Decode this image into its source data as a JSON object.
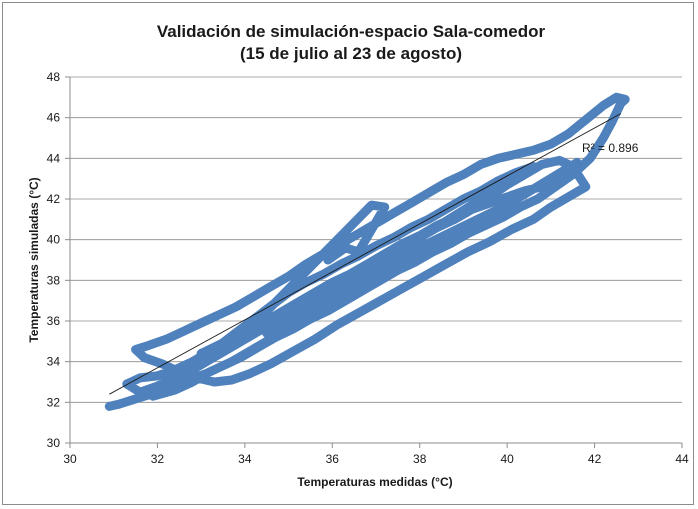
{
  "chart_data": {
    "type": "scatter",
    "title_line1": "Validación de simulación-espacio Sala-comedor",
    "title_line2": "(15 de julio al 23 de agosto)",
    "xlabel": "Temperaturas medidas (°C)",
    "ylabel": "Temperaturas simuladas (°C)",
    "xlim": [
      30,
      44
    ],
    "ylim": [
      30,
      48
    ],
    "xticks": [
      30,
      32,
      34,
      36,
      38,
      40,
      42,
      44
    ],
    "yticks": [
      30,
      32,
      34,
      36,
      38,
      40,
      42,
      44,
      46,
      48
    ],
    "xtick_labels": [
      "30",
      "32",
      "34",
      "36",
      "38",
      "40",
      "42",
      "44"
    ],
    "ytick_labels": [
      "30",
      "32",
      "34",
      "36",
      "38",
      "40",
      "42",
      "44",
      "46",
      "48"
    ],
    "grid": "horizontal",
    "legend": "none",
    "marker_color": "#4f81bd",
    "trendline_color": "#1a1a1a",
    "annotation": "R² = 0.896",
    "trendline": {
      "x": [
        30.9,
        42.6
      ],
      "y": [
        32.4,
        46.2
      ]
    },
    "series": [
      {
        "values": [
          [
            30.9,
            31.8
          ],
          [
            31.1,
            31.9
          ],
          [
            31.4,
            32.1
          ],
          [
            31.7,
            32.3
          ],
          [
            32.0,
            32.5
          ],
          [
            32.3,
            32.8
          ],
          [
            32.7,
            33.1
          ],
          [
            33.1,
            33.4
          ],
          [
            33.5,
            33.8
          ],
          [
            33.9,
            34.2
          ],
          [
            34.3,
            34.7
          ],
          [
            34.7,
            35.2
          ],
          [
            35.1,
            35.6
          ],
          [
            35.5,
            36.1
          ],
          [
            35.9,
            36.5
          ],
          [
            36.3,
            37.0
          ],
          [
            36.7,
            37.5
          ],
          [
            37.1,
            38.0
          ],
          [
            37.5,
            38.5
          ],
          [
            37.9,
            38.9
          ],
          [
            38.3,
            39.4
          ],
          [
            38.7,
            39.8
          ],
          [
            39.1,
            40.3
          ],
          [
            39.5,
            40.7
          ],
          [
            39.9,
            41.1
          ],
          [
            40.3,
            41.6
          ],
          [
            40.7,
            42.0
          ],
          [
            41.1,
            42.6
          ],
          [
            41.5,
            43.2
          ],
          [
            41.9,
            44.0
          ],
          [
            42.2,
            45.0
          ],
          [
            42.4,
            45.8
          ],
          [
            42.6,
            46.7
          ],
          [
            42.7,
            46.9
          ],
          [
            42.5,
            47.0
          ],
          [
            42.2,
            46.6
          ],
          [
            41.8,
            45.9
          ],
          [
            41.4,
            45.2
          ],
          [
            41.0,
            44.7
          ],
          [
            40.6,
            44.4
          ],
          [
            40.2,
            44.2
          ],
          [
            39.8,
            44.0
          ],
          [
            39.4,
            43.7
          ],
          [
            39.0,
            43.2
          ],
          [
            38.6,
            42.8
          ],
          [
            38.2,
            42.3
          ],
          [
            37.8,
            41.8
          ],
          [
            37.4,
            41.3
          ],
          [
            37.0,
            40.8
          ],
          [
            36.6,
            40.3
          ],
          [
            36.2,
            39.8
          ],
          [
            35.8,
            39.3
          ],
          [
            35.4,
            38.8
          ],
          [
            35.0,
            38.2
          ],
          [
            34.6,
            37.7
          ],
          [
            34.2,
            37.2
          ],
          [
            33.8,
            36.7
          ],
          [
            33.4,
            36.3
          ],
          [
            33.0,
            35.9
          ],
          [
            32.6,
            35.5
          ],
          [
            32.2,
            35.1
          ],
          [
            31.8,
            34.8
          ],
          [
            31.5,
            34.6
          ],
          [
            31.7,
            34.2
          ],
          [
            32.1,
            33.9
          ],
          [
            32.5,
            33.5
          ],
          [
            32.9,
            33.2
          ],
          [
            33.3,
            33.0
          ],
          [
            33.7,
            33.1
          ],
          [
            34.1,
            33.4
          ],
          [
            34.6,
            33.9
          ],
          [
            35.1,
            34.5
          ],
          [
            35.6,
            35.1
          ],
          [
            36.1,
            35.8
          ],
          [
            36.6,
            36.4
          ],
          [
            37.1,
            37.0
          ],
          [
            37.6,
            37.6
          ],
          [
            38.1,
            38.2
          ],
          [
            38.6,
            38.8
          ],
          [
            39.1,
            39.4
          ],
          [
            39.6,
            39.9
          ],
          [
            40.1,
            40.5
          ],
          [
            40.6,
            41.0
          ],
          [
            41.0,
            41.6
          ],
          [
            41.4,
            42.1
          ],
          [
            41.8,
            42.6
          ],
          [
            41.5,
            43.6
          ],
          [
            41.2,
            43.9
          ],
          [
            40.8,
            43.7
          ],
          [
            40.4,
            43.2
          ],
          [
            40.0,
            42.7
          ],
          [
            39.6,
            42.1
          ],
          [
            39.2,
            41.5
          ],
          [
            38.8,
            41.0
          ],
          [
            38.4,
            40.6
          ],
          [
            38.0,
            40.1
          ],
          [
            37.6,
            39.6
          ],
          [
            37.2,
            39.1
          ],
          [
            36.8,
            38.6
          ],
          [
            36.4,
            38.1
          ],
          [
            36.0,
            37.6
          ],
          [
            35.6,
            37.1
          ],
          [
            35.2,
            36.6
          ],
          [
            34.8,
            36.1
          ],
          [
            34.4,
            35.6
          ],
          [
            34.0,
            35.1
          ],
          [
            33.6,
            34.6
          ],
          [
            33.2,
            34.1
          ],
          [
            32.8,
            33.6
          ],
          [
            32.4,
            33.2
          ],
          [
            32.0,
            32.8
          ],
          [
            31.6,
            32.5
          ],
          [
            31.3,
            32.9
          ],
          [
            31.6,
            33.2
          ],
          [
            32.0,
            33.3
          ],
          [
            32.4,
            33.6
          ],
          [
            32.8,
            34.0
          ],
          [
            33.2,
            34.5
          ],
          [
            33.6,
            34.9
          ],
          [
            34.0,
            35.4
          ],
          [
            34.4,
            35.9
          ],
          [
            34.8,
            36.4
          ],
          [
            35.2,
            36.9
          ],
          [
            35.6,
            37.4
          ],
          [
            36.0,
            37.9
          ],
          [
            36.4,
            38.3
          ],
          [
            36.8,
            38.8
          ],
          [
            37.2,
            39.3
          ],
          [
            37.6,
            39.8
          ],
          [
            38.0,
            40.2
          ],
          [
            38.4,
            40.7
          ],
          [
            38.8,
            41.1
          ],
          [
            39.2,
            41.5
          ],
          [
            39.6,
            41.8
          ],
          [
            40.0,
            42.1
          ],
          [
            40.4,
            42.4
          ],
          [
            40.8,
            42.6
          ],
          [
            41.2,
            43.0
          ],
          [
            41.6,
            43.8
          ],
          [
            41.3,
            43.4
          ],
          [
            37.9,
            39.0
          ],
          [
            37.4,
            38.9
          ],
          [
            37.0,
            38.5
          ],
          [
            36.6,
            37.9
          ],
          [
            36.2,
            37.3
          ],
          [
            35.8,
            36.8
          ],
          [
            35.3,
            36.2
          ],
          [
            34.9,
            35.6
          ],
          [
            34.5,
            35.0
          ],
          [
            34.1,
            34.5
          ],
          [
            33.7,
            34.0
          ],
          [
            33.2,
            33.5
          ],
          [
            32.8,
            33.0
          ],
          [
            32.4,
            32.6
          ],
          [
            31.9,
            32.3
          ],
          [
            35.0,
            37.4
          ],
          [
            35.4,
            37.9
          ],
          [
            35.8,
            38.3
          ],
          [
            36.2,
            38.8
          ],
          [
            36.6,
            39.2
          ],
          [
            37.0,
            39.7
          ],
          [
            37.4,
            40.1
          ],
          [
            37.8,
            40.6
          ],
          [
            38.2,
            41.0
          ],
          [
            38.6,
            41.5
          ],
          [
            39.0,
            42.0
          ],
          [
            39.4,
            42.4
          ],
          [
            39.8,
            42.9
          ],
          [
            40.2,
            43.3
          ],
          [
            40.6,
            43.6
          ],
          [
            34.5,
            35.4
          ],
          [
            35.0,
            36.0
          ],
          [
            35.5,
            36.5
          ],
          [
            36.0,
            37.1
          ],
          [
            36.5,
            37.7
          ],
          [
            37.0,
            38.2
          ],
          [
            37.5,
            38.8
          ],
          [
            38.0,
            39.4
          ],
          [
            38.5,
            39.9
          ],
          [
            39.0,
            40.5
          ],
          [
            39.5,
            41.1
          ],
          [
            40.0,
            41.7
          ],
          [
            33.0,
            34.4
          ],
          [
            33.5,
            34.9
          ],
          [
            34.0,
            35.4
          ],
          [
            36.9,
            41.7
          ],
          [
            37.2,
            41.6
          ],
          [
            36.6,
            39.4
          ],
          [
            36.3,
            39.6
          ],
          [
            35.9,
            39.0
          ]
        ]
      }
    ]
  }
}
